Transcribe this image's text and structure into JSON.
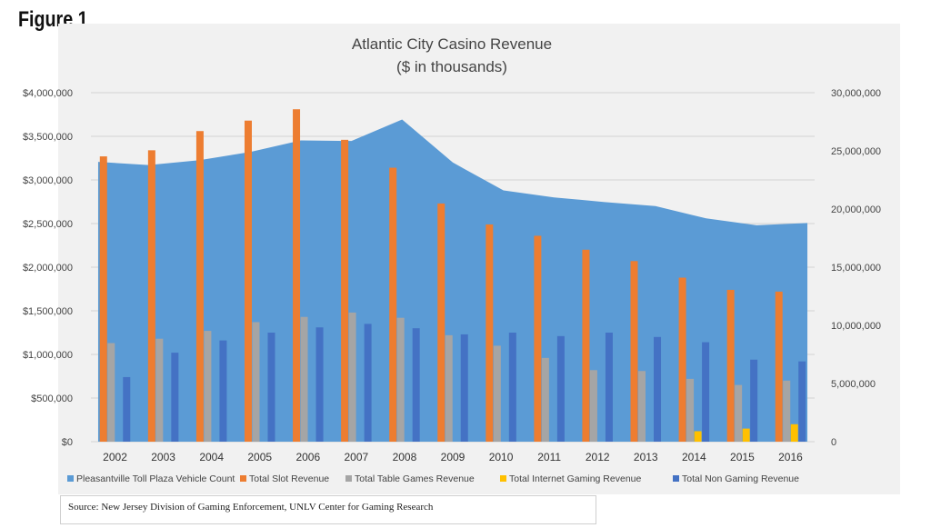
{
  "figure_label": "Figure 1",
  "source": "Source: New Jersey Division of Gaming Enforcement, UNLV Center for Gaming Research",
  "chart_data": {
    "type": "bar",
    "title": "Atlantic City Casino Revenue",
    "subtitle": "($ in thousands)",
    "categories": [
      "2002",
      "2003",
      "2004",
      "2005",
      "2006",
      "2007",
      "2008",
      "2009",
      "2010",
      "2011",
      "2012",
      "2013",
      "2014",
      "2015",
      "2016"
    ],
    "y_left": {
      "ylim": [
        0,
        4000000
      ],
      "ticks": [
        0,
        500000,
        1000000,
        1500000,
        2000000,
        2500000,
        3000000,
        3500000,
        4000000
      ],
      "tick_labels": [
        "$0",
        "$500,000",
        "$1,000,000",
        "$1,500,000",
        "$2,000,000",
        "$2,500,000",
        "$3,000,000",
        "$3,500,000",
        "$4,000,000"
      ]
    },
    "y_right": {
      "ylim": [
        0,
        30000000
      ],
      "ticks": [
        0,
        5000000,
        10000000,
        15000000,
        20000000,
        25000000,
        30000000
      ],
      "tick_labels": [
        "0",
        "5,000,000",
        "10,000,000",
        "15,000,000",
        "20,000,000",
        "25,000,000",
        "30,000,000"
      ]
    },
    "area_series": {
      "name": "Pleasantville Toll Plaza Vehicle Count",
      "axis": "right",
      "color": "#5b9bd5",
      "values": [
        24050000,
        23780000,
        24200000,
        24900000,
        25900000,
        25850000,
        27700000,
        24000000,
        21600000,
        21000000,
        20600000,
        20250000,
        19200000,
        18600000,
        18800000
      ]
    },
    "series": [
      {
        "name": "Total Slot Revenue",
        "axis": "left",
        "color": "#ed7d31",
        "values": [
          3270000,
          3340000,
          3560000,
          3680000,
          3810000,
          3460000,
          3140000,
          2730000,
          2490000,
          2360000,
          2200000,
          2070000,
          1880000,
          1740000,
          1720000
        ]
      },
      {
        "name": "Total Table Games Revenue",
        "axis": "left",
        "color": "#a5a5a5",
        "values": [
          1130000,
          1180000,
          1270000,
          1370000,
          1430000,
          1480000,
          1420000,
          1220000,
          1100000,
          960000,
          820000,
          810000,
          720000,
          650000,
          700000
        ]
      },
      {
        "name": "Total Internet Gaming Revenue",
        "axis": "left",
        "color": "#ffc000",
        "values": [
          0,
          0,
          0,
          0,
          0,
          0,
          0,
          0,
          0,
          0,
          0,
          0,
          120000,
          150000,
          200000
        ]
      },
      {
        "name": "Total Non Gaming Revenue",
        "axis": "left",
        "color": "#4472c4",
        "values": [
          740000,
          1020000,
          1160000,
          1250000,
          1310000,
          1350000,
          1300000,
          1230000,
          1250000,
          1210000,
          1250000,
          1200000,
          1140000,
          940000,
          920000
        ]
      }
    ],
    "legend": [
      "Pleasantville Toll Plaza Vehicle Count",
      "Total Slot Revenue",
      "Total Table Games Revenue",
      "Total Internet Gaming Revenue",
      "Total Non Gaming Revenue"
    ],
    "legend_position": "bottom",
    "grid": true
  }
}
